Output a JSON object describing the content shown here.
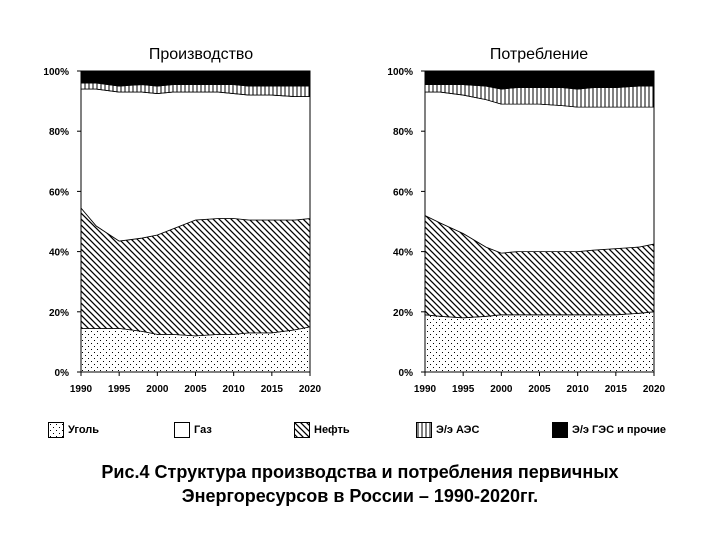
{
  "chart_data": [
    {
      "type": "area",
      "stacked": true,
      "title": "Производство",
      "x": [
        1990,
        1992,
        1995,
        1998,
        2000,
        2002,
        2005,
        2008,
        2010,
        2012,
        2015,
        2018,
        2020
      ],
      "x_ticks": [
        "1990",
        "1995",
        "2000",
        "2005",
        "2010",
        "2015",
        "2020"
      ],
      "y_ticks": [
        "0%",
        "20%",
        "40%",
        "60%",
        "80%",
        "100%"
      ],
      "ylim": [
        0,
        100
      ],
      "series": [
        {
          "name": "Уголь",
          "values": [
            14.5,
            14.5,
            14.5,
            13.5,
            12.5,
            12.5,
            12,
            12.5,
            12.5,
            13,
            13,
            14,
            15
          ]
        },
        {
          "name": "Нефть",
          "values": [
            40,
            34,
            29,
            31,
            33,
            35,
            38.5,
            38.5,
            38.5,
            37.5,
            37.5,
            36.5,
            36
          ]
        },
        {
          "name": "Газ",
          "values": [
            39.5,
            45.5,
            49.5,
            48.5,
            47,
            45.5,
            42.5,
            42,
            41.5,
            41.5,
            41.5,
            41,
            40.5
          ]
        },
        {
          "name": "Э/э АЭС",
          "values": [
            2,
            2,
            2,
            2.5,
            2.5,
            2.5,
            2.5,
            2.5,
            3,
            3,
            3,
            3.5,
            3.5
          ]
        },
        {
          "name": "Э/э ГЭС и прочие",
          "values": [
            4,
            4,
            5,
            4.5,
            5,
            4.5,
            4.5,
            4.5,
            4.5,
            5,
            5,
            5,
            5
          ]
        }
      ]
    },
    {
      "type": "area",
      "stacked": true,
      "title": "Потребление",
      "x": [
        1990,
        1992,
        1995,
        1998,
        2000,
        2002,
        2005,
        2008,
        2010,
        2012,
        2015,
        2018,
        2020
      ],
      "x_ticks": [
        "1990",
        "1995",
        "2000",
        "2005",
        "2010",
        "2015",
        "2020"
      ],
      "y_ticks": [
        "0%",
        "20%",
        "40%",
        "60%",
        "80%",
        "100%"
      ],
      "ylim": [
        0,
        100
      ],
      "series": [
        {
          "name": "Уголь",
          "values": [
            19,
            18.5,
            18,
            18.5,
            19,
            19,
            19,
            19,
            19,
            19,
            19,
            19.5,
            20
          ]
        },
        {
          "name": "Нефть",
          "values": [
            33,
            31,
            28,
            23,
            20.5,
            21,
            21,
            21,
            21,
            21.5,
            22,
            22,
            22.5
          ]
        },
        {
          "name": "Газ",
          "values": [
            41,
            43.5,
            46,
            49,
            49.5,
            49,
            49,
            48.5,
            48,
            47.5,
            47,
            46.5,
            45.5
          ]
        },
        {
          "name": "Э/э АЭС",
          "values": [
            2.5,
            2.5,
            3.5,
            4.5,
            5,
            5.5,
            5.5,
            6,
            6,
            6.5,
            6.5,
            7,
            7
          ]
        },
        {
          "name": "Э/э ГЭС и прочие",
          "values": [
            4.5,
            4.5,
            4.5,
            5,
            6,
            5.5,
            5.5,
            5.5,
            6,
            5.5,
            5.5,
            5,
            5
          ]
        }
      ]
    }
  ],
  "legend": [
    {
      "label": "Уголь",
      "pattern": "dots"
    },
    {
      "label": "Газ",
      "pattern": "white"
    },
    {
      "label": "Нефть",
      "pattern": "diagonal"
    },
    {
      "label": "Э/э АЭС",
      "pattern": "vertical"
    },
    {
      "label": "Э/э ГЭС и прочие",
      "pattern": "black"
    }
  ],
  "caption": {
    "line1": "Рис.4 Структура производства и потребления первичных",
    "line2": "Энергоресурсов в России – 1990-2020гг."
  }
}
